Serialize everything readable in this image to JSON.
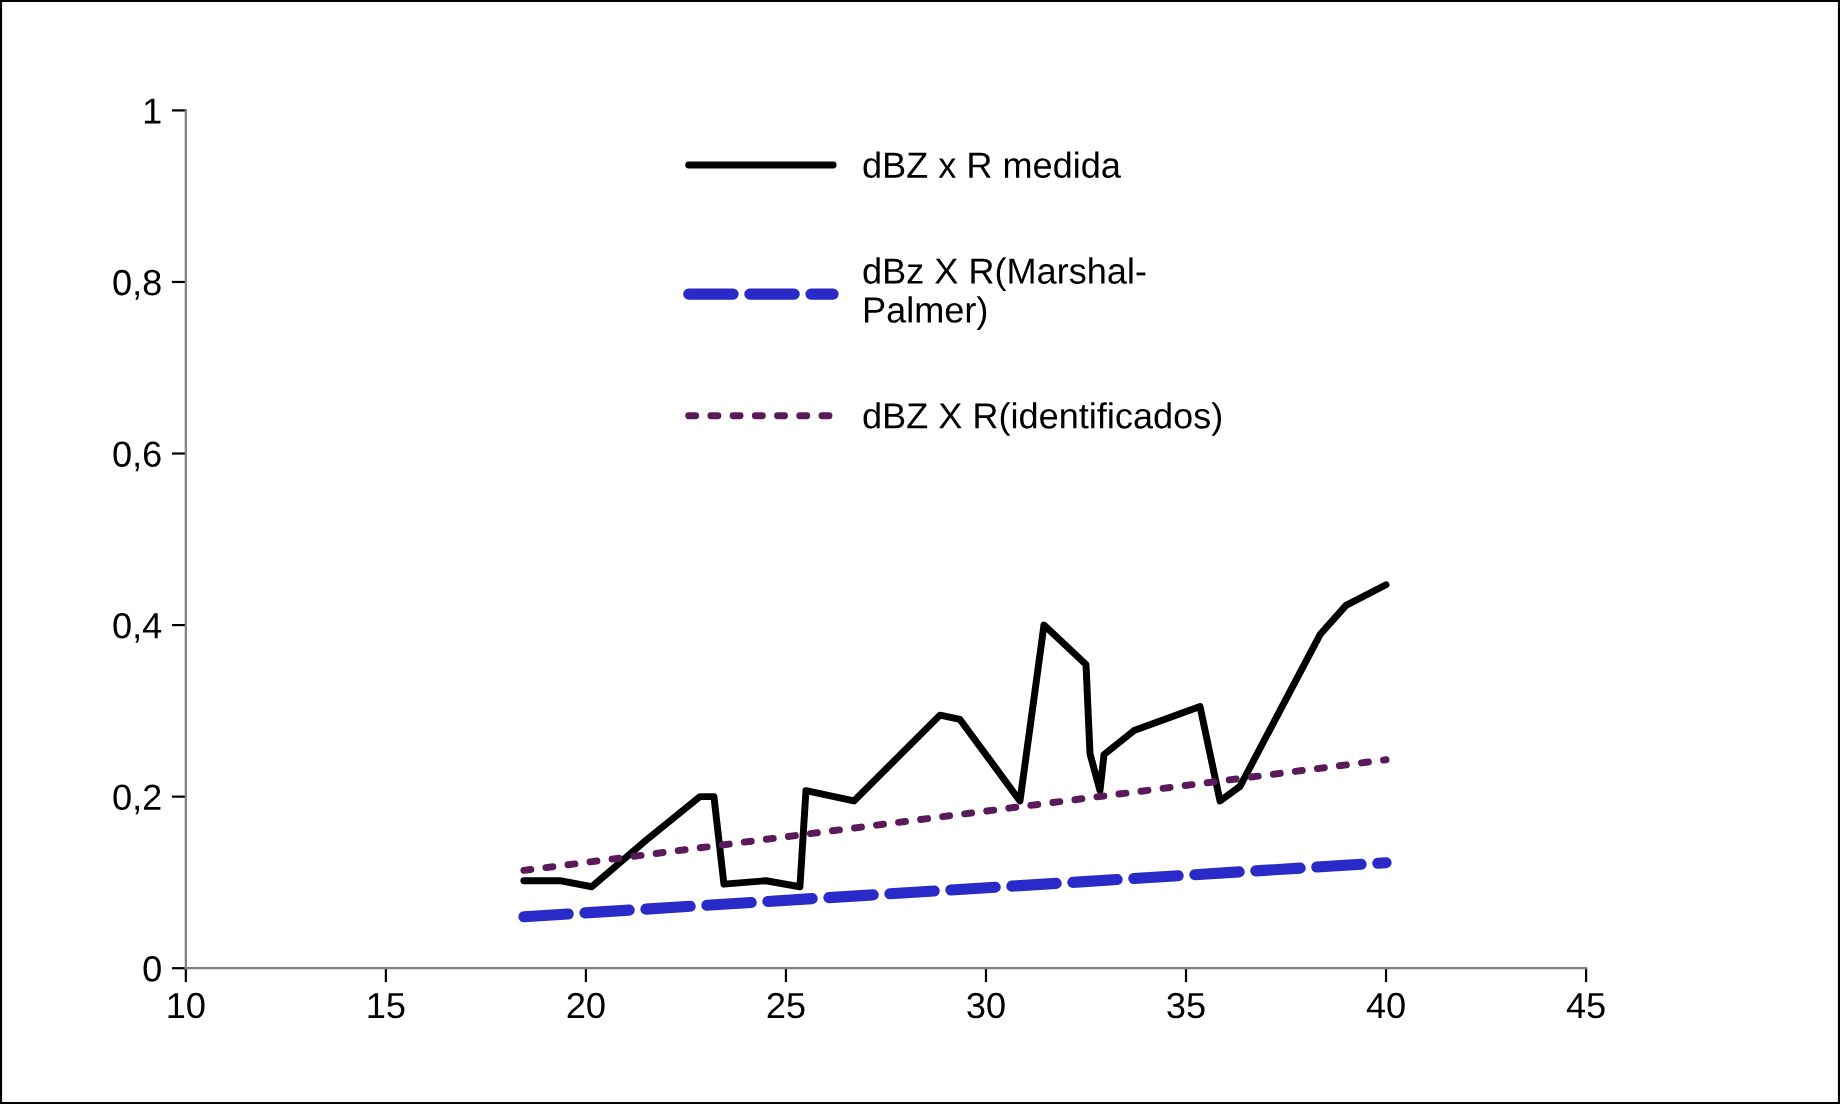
{
  "chart_data": {
    "type": "line",
    "xlim": [
      10,
      45
    ],
    "xticks": [
      10,
      15,
      20,
      25,
      30,
      35,
      40,
      45
    ],
    "ylim": [
      0,
      1
    ],
    "yticks": [
      0,
      {
        "value": 0.2,
        "label": "0,2"
      },
      {
        "value": 0.4,
        "label": "0,4"
      },
      {
        "value": 0.6,
        "label": "0,6"
      },
      {
        "value": 0.8,
        "label": "0,8"
      },
      1
    ],
    "grid": false,
    "legend": "top",
    "marker": "none",
    "series": [
      {
        "name": "dBZ x R medida",
        "color": "#000000",
        "line_style": "solid",
        "x": [
          18.45,
          19.35,
          20.15,
          21.5,
          22.85,
          23.2,
          23.45,
          24.5,
          25.35,
          25.5,
          26.7,
          28.85,
          29.35,
          30.85,
          31.45,
          32.5,
          32.6,
          32.85,
          32.95,
          33.7,
          35.35,
          35.85,
          36.35,
          38.35,
          39.0,
          40.0
        ],
        "values": [
          0.102,
          0.102,
          0.095,
          0.149,
          0.2,
          0.2,
          0.098,
          0.102,
          0.095,
          0.207,
          0.195,
          0.295,
          0.29,
          0.195,
          0.4,
          0.354,
          0.25,
          0.207,
          0.249,
          0.277,
          0.305,
          0.195,
          0.212,
          0.389,
          0.423,
          0.447
        ]
      },
      {
        "name": "dBz X R(Marshal-Palmer)",
        "color": "#2a2ac8",
        "line_style": "dashed",
        "x": [
          18.45,
          40.0
        ],
        "values": [
          0.06,
          0.123
        ]
      },
      {
        "name": "dBZ X R(identificados)",
        "color": "#5a1a5a",
        "line_style": "dotted",
        "x": [
          18.45,
          40.0
        ],
        "values": [
          0.114,
          0.243
        ]
      }
    ]
  }
}
